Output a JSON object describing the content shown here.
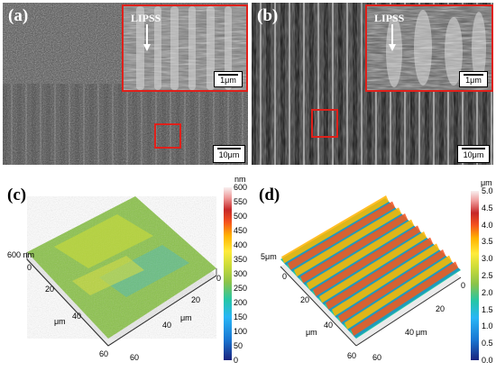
{
  "panels": {
    "a": {
      "label": "(a)",
      "inset_annotation": "LIPSS",
      "inset_scale": "1μm",
      "scale": "10μm"
    },
    "b": {
      "label": "(b)",
      "inset_annotation": "LIPSS",
      "inset_scale": "1μm",
      "scale": "10μm"
    },
    "c": {
      "label": "(c)",
      "colorbar_unit": "nm",
      "colorbar_ticks": [
        "600",
        "550",
        "500",
        "450",
        "400",
        "350",
        "300",
        "250",
        "200",
        "150",
        "100",
        "50",
        "0"
      ],
      "z_label": "600 nm",
      "x_ticks": [
        "0",
        "20",
        "40",
        "60"
      ],
      "x_unit": "μm",
      "y_ticks": [
        "0",
        "20",
        "40",
        "60"
      ],
      "y_unit": "μm"
    },
    "d": {
      "label": "(d)",
      "colorbar_unit": "μm",
      "colorbar_ticks": [
        "5.0",
        "4.5",
        "4.0",
        "3.5",
        "3.0",
        "2.5",
        "2.0",
        "1.5",
        "1.0",
        "0.5",
        "0.0"
      ],
      "z_label": "5μm",
      "x_ticks": [
        "0",
        "20",
        "40",
        "60"
      ],
      "x_unit": "μm",
      "y_ticks": [
        "0",
        "20",
        "40",
        "60"
      ],
      "y_unit": "μm"
    }
  },
  "colors": {
    "inset_border": "#e0201a",
    "colormap": [
      "#1a237e",
      "#1976d2",
      "#29b6f6",
      "#26c6a6",
      "#8bc34a",
      "#cddc39",
      "#ffeb3b",
      "#ffb300",
      "#f4511e",
      "#c62828",
      "#ef9a9a",
      "#f8f0f0"
    ]
  }
}
